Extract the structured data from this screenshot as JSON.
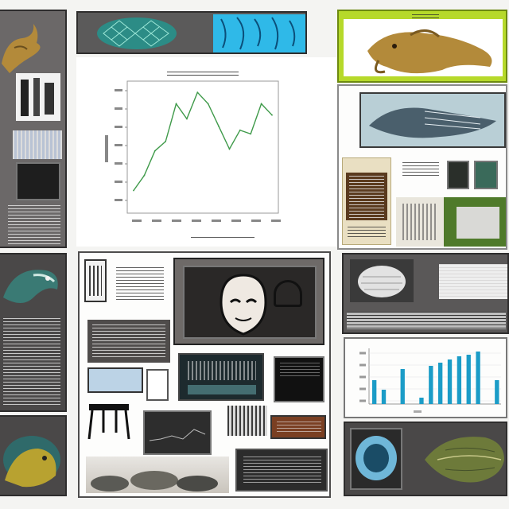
{
  "colors": {
    "accent_lime": "#b6d92a",
    "line_green": "#3f9a4a",
    "bar_cyan": "#1b9cc7",
    "teal": "#39b6b0",
    "creature_gold": "#b38a3a",
    "panel_dark": "#4a4848"
  },
  "icons": [
    "fish-illustration",
    "lizard-illustration",
    "face-illustration",
    "terminal-screen"
  ],
  "line_chart": {
    "type": "line",
    "x": [
      1,
      2,
      3,
      4,
      5,
      6,
      7,
      8,
      9,
      10,
      11,
      12,
      13,
      14
    ],
    "values": [
      12,
      20,
      33,
      38,
      58,
      50,
      64,
      58,
      46,
      34,
      44,
      42,
      58,
      52
    ],
    "ylim": [
      0,
      70
    ]
  },
  "bar_chart": {
    "type": "bar",
    "values": [
      30,
      18,
      0,
      44,
      0,
      8,
      48,
      52,
      56,
      60,
      62,
      66,
      0,
      30
    ],
    "ylim": [
      0,
      70
    ]
  },
  "chart_data": [
    {
      "type": "line",
      "x": [
        1,
        2,
        3,
        4,
        5,
        6,
        7,
        8,
        9,
        10,
        11,
        12,
        13,
        14
      ],
      "values": [
        12,
        20,
        33,
        38,
        58,
        50,
        64,
        58,
        46,
        34,
        44,
        42,
        58,
        52
      ],
      "ylim": [
        0,
        70
      ]
    },
    {
      "type": "bar",
      "values": [
        30,
        18,
        0,
        44,
        0,
        8,
        48,
        52,
        56,
        60,
        62,
        66,
        0,
        30
      ],
      "ylim": [
        0,
        70
      ]
    }
  ]
}
